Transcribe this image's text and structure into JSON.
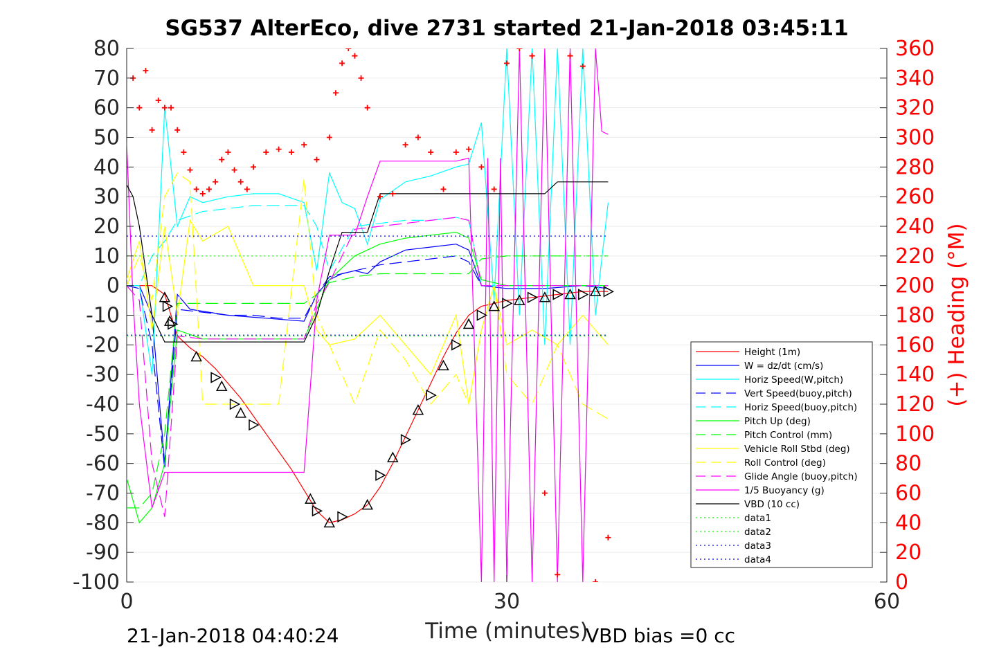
{
  "chart_data": {
    "type": "line",
    "title": "SG537 AlterEco, dive 2731 started 21-Jan-2018 03:45:11",
    "xlabel": "Time (minutes)",
    "ylabel_right": "(+) Heading (°M)",
    "xlim": [
      0,
      60
    ],
    "ylim": [
      -100,
      80
    ],
    "ylim_right": [
      0,
      360
    ],
    "x_ticks": [
      "0",
      "30",
      "60"
    ],
    "y_ticks": [
      "80",
      "70",
      "60",
      "50",
      "40",
      "30",
      "20",
      "10",
      "0",
      "-10",
      "-20",
      "-30",
      "-40",
      "-50",
      "-60",
      "-70",
      "-80",
      "-90",
      "-100"
    ],
    "y_ticks_right": [
      "360",
      "340",
      "320",
      "300",
      "280",
      "260",
      "240",
      "220",
      "200",
      "180",
      "160",
      "140",
      "120",
      "100",
      "80",
      "60",
      "40",
      "20",
      "0"
    ],
    "footer_left": "21-Jan-2018 04:40:24",
    "footer_right": "VBD bias =0 cc",
    "legend_position": "lower-right",
    "legend": [
      {
        "label": "Height (1m)",
        "color": "#ff0000",
        "style": "solid"
      },
      {
        "label": "W = dz/dt (cm/s)",
        "color": "#0000ff",
        "style": "solid"
      },
      {
        "label": "Horiz Speed(W,pitch)",
        "color": "#00ffff",
        "style": "solid"
      },
      {
        "label": "Vert Speed(buoy,pitch)",
        "color": "#0000ff",
        "style": "dashed"
      },
      {
        "label": "Horiz Speed(buoy,pitch)",
        "color": "#00ffff",
        "style": "dashed"
      },
      {
        "label": "Pitch Up (deg)",
        "color": "#00ff00",
        "style": "solid"
      },
      {
        "label": "Pitch Control (mm)",
        "color": "#00ff00",
        "style": "dashed"
      },
      {
        "label": "Vehicle Roll Stbd (deg)",
        "color": "#ffff00",
        "style": "solid"
      },
      {
        "label": "Roll Control (deg)",
        "color": "#ffff00",
        "style": "dashed"
      },
      {
        "label": "Glide Angle (buoy,pitch)",
        "color": "#ff00ff",
        "style": "dashed"
      },
      {
        "label": "1/5 Buoyancy (g)",
        "color": "#ff00ff",
        "style": "solid"
      },
      {
        "label": "VBD (10 cc)",
        "color": "#000000",
        "style": "solid"
      },
      {
        "label": "data1",
        "color": "#00ff00",
        "style": "dotted"
      },
      {
        "label": "data2",
        "color": "#00ff00",
        "style": "dotted"
      },
      {
        "label": "data3",
        "color": "#0000ff",
        "style": "dotted"
      },
      {
        "label": "data4",
        "color": "#0000ff",
        "style": "dotted"
      }
    ],
    "series": [
      {
        "name": "Height (1m)",
        "x": [
          0,
          1,
          2,
          3,
          4,
          5,
          6,
          7,
          8,
          9,
          10,
          11,
          12,
          13,
          14,
          15,
          16,
          17,
          18,
          19,
          20,
          21,
          22,
          23,
          24,
          25,
          26,
          27,
          28,
          29,
          30,
          32,
          34,
          36,
          38
        ],
        "values": [
          0,
          0,
          0,
          -3,
          -17,
          -21,
          -24,
          -28,
          -33,
          -38,
          -44,
          -50,
          -56,
          -62,
          -69,
          -76,
          -80,
          -79,
          -77,
          -74,
          -68,
          -60,
          -51,
          -42,
          -33,
          -24,
          -16,
          -10,
          -7,
          -6,
          -5,
          -4,
          -3,
          -2,
          -2
        ]
      },
      {
        "name": "W = dz/dt (cm/s)",
        "x": [
          0,
          1,
          2,
          3,
          4,
          5,
          8,
          11,
          14,
          15,
          16,
          17,
          18,
          19,
          20,
          22,
          24,
          26,
          27,
          28,
          30,
          33,
          36,
          38
        ],
        "values": [
          0,
          0,
          -10,
          -60,
          -3,
          -8,
          -10,
          -11,
          -12,
          -3,
          2,
          4,
          5,
          4,
          8,
          12,
          13,
          14,
          12,
          0,
          -1,
          -1,
          0,
          -1
        ]
      },
      {
        "name": "Horiz Speed(W,pitch)",
        "x": [
          0,
          1,
          2,
          3,
          4,
          5,
          6,
          8,
          10,
          12,
          14,
          15,
          16,
          17,
          18,
          19,
          20,
          22,
          24,
          26,
          27,
          28,
          29,
          30,
          31,
          32,
          33,
          34,
          35,
          36,
          37,
          38
        ],
        "values": [
          0,
          0,
          -30,
          60,
          20,
          30,
          28,
          30,
          31,
          31,
          28,
          5,
          38,
          28,
          26,
          14,
          29,
          35,
          37,
          40,
          41,
          55,
          -5,
          80,
          -10,
          80,
          -20,
          80,
          -20,
          80,
          -10,
          28
        ]
      },
      {
        "name": "Vert Speed(buoy,pitch)",
        "x": [
          0,
          1,
          2,
          3,
          4,
          6,
          8,
          10,
          12,
          14,
          15,
          16,
          18,
          20,
          22,
          24,
          26,
          27,
          28,
          30,
          32,
          34,
          36,
          38
        ],
        "values": [
          0,
          -1,
          -20,
          -62,
          -8,
          -9,
          -10,
          -10,
          -11,
          -11,
          -3,
          3,
          5,
          7,
          8,
          9,
          10,
          8,
          0,
          0,
          0,
          0,
          0,
          0
        ]
      },
      {
        "name": "Horiz Speed(buoy,pitch)",
        "x": [
          0,
          1,
          2,
          3,
          4,
          6,
          8,
          10,
          12,
          14,
          15,
          16,
          18,
          20,
          22,
          24,
          26,
          27,
          28,
          30,
          32,
          34,
          36,
          38
        ],
        "values": [
          0,
          0,
          10,
          15,
          22,
          25,
          26,
          27,
          27,
          27,
          20,
          5,
          20,
          21,
          22,
          22,
          23,
          22,
          0,
          0,
          0,
          0,
          0,
          0
        ]
      },
      {
        "name": "Pitch Up (deg)",
        "x": [
          0,
          1,
          2,
          3,
          4,
          6,
          8,
          10,
          12,
          14,
          15,
          16,
          18,
          20,
          22,
          24,
          26,
          27,
          28,
          30,
          32,
          34,
          36,
          38
        ],
        "values": [
          -65,
          -80,
          -75,
          -60,
          -15,
          -18,
          -18,
          -18,
          -18,
          -18,
          -8,
          2,
          10,
          14,
          16,
          17,
          18,
          16,
          2,
          0,
          0,
          0,
          0,
          0
        ]
      },
      {
        "name": "Pitch Control (mm)",
        "x": [
          0,
          1,
          2,
          3,
          4,
          6,
          8,
          10,
          12,
          14,
          15,
          16,
          18,
          20,
          22,
          24,
          26,
          27,
          28,
          30,
          32,
          34,
          36,
          38
        ],
        "values": [
          -75,
          -75,
          -70,
          -50,
          -6,
          -6,
          -6,
          -6,
          -6,
          -6,
          -3,
          1,
          3,
          4,
          4,
          4,
          4,
          4,
          9,
          10,
          10,
          10,
          10,
          10
        ]
      },
      {
        "name": "Vehicle Roll Stbd (deg)",
        "x": [
          0,
          1,
          2,
          3,
          4,
          5,
          6,
          8,
          10,
          12,
          14,
          15,
          16,
          18,
          20,
          22,
          24,
          26,
          27,
          28,
          29,
          30,
          32,
          34,
          36,
          38
        ],
        "values": [
          2,
          15,
          -15,
          20,
          -10,
          22,
          15,
          20,
          0,
          0,
          0,
          -15,
          -20,
          -18,
          -10,
          -20,
          -30,
          -10,
          -40,
          -15,
          0,
          -20,
          -15,
          -20,
          -10,
          -20
        ]
      },
      {
        "name": "Roll Control (deg)",
        "x": [
          0,
          1,
          2,
          3,
          4,
          5,
          6,
          8,
          10,
          12,
          14,
          15,
          16,
          18,
          20,
          22,
          24,
          26,
          27,
          28,
          29,
          30,
          32,
          34,
          36,
          38
        ],
        "values": [
          0,
          10,
          -5,
          30,
          38,
          35,
          -40,
          -40,
          -40,
          -40,
          36,
          -10,
          -20,
          -40,
          -15,
          -25,
          -40,
          -30,
          -40,
          -15,
          0,
          -30,
          -40,
          -20,
          -40,
          -45
        ]
      },
      {
        "name": "Glide Angle (buoy,pitch)",
        "x": [
          0,
          1,
          2,
          3,
          4,
          6,
          8,
          10,
          12,
          14,
          15,
          16,
          18,
          20,
          22,
          24,
          26,
          27,
          28,
          30,
          32,
          34,
          36,
          38
        ],
        "values": [
          0,
          -5,
          -60,
          -78,
          -17,
          -18,
          -18,
          -18,
          -18,
          -18,
          -6,
          1,
          19,
          20,
          21,
          22,
          23,
          22,
          0,
          0,
          0,
          0,
          0,
          0
        ]
      },
      {
        "name": "1/5 Buoyancy (g)",
        "x": [
          0,
          0.5,
          1,
          2,
          3,
          4,
          8,
          12,
          14,
          15,
          16,
          17,
          18,
          19,
          20,
          24,
          26,
          27,
          28,
          28.5,
          29,
          29.5,
          30,
          31,
          32,
          33,
          34,
          35,
          36,
          37,
          37.5,
          38
        ],
        "values": [
          48,
          -5,
          -40,
          -75,
          -63,
          -63,
          -63,
          -63,
          -63,
          -5,
          17,
          17,
          17,
          30,
          42,
          42,
          42,
          43,
          -100,
          43,
          -100,
          43,
          -100,
          80,
          -100,
          80,
          -100,
          80,
          -100,
          80,
          52,
          51
        ]
      },
      {
        "name": "VBD (10 cc)",
        "x": [
          0,
          0.5,
          1,
          2,
          3,
          5,
          8,
          10,
          12,
          14,
          15,
          16,
          17,
          18,
          19,
          20,
          21,
          23,
          25,
          27,
          30,
          33,
          34,
          36,
          38
        ],
        "values": [
          34,
          30,
          20,
          -10,
          -19,
          -19,
          -19,
          -19,
          -19,
          -19,
          -10,
          5,
          18,
          18,
          18,
          31,
          31,
          31,
          31,
          31,
          31,
          31,
          35,
          35,
          35
        ]
      },
      {
        "name": "data1",
        "x": [
          0,
          38
        ],
        "values": [
          10,
          10
        ]
      },
      {
        "name": "data2",
        "x": [
          0,
          38
        ],
        "values": [
          -17,
          -17
        ]
      },
      {
        "name": "data3",
        "x": [
          0,
          38
        ],
        "values": [
          16.7,
          16.7
        ]
      },
      {
        "name": "data4",
        "x": [
          0,
          38
        ],
        "values": [
          -16.7,
          -16.7
        ]
      }
    ],
    "depth_markers": {
      "x": [
        3,
        3.2,
        3.4,
        3.6,
        5.5,
        7,
        7.5,
        8.5,
        9,
        10,
        14.5,
        15,
        16,
        17,
        19,
        20,
        21,
        22,
        23,
        24,
        25,
        26,
        27,
        28,
        29,
        30,
        31,
        32,
        33,
        34,
        35,
        36,
        37,
        38
      ],
      "values": [
        -4,
        -7,
        -12,
        -13,
        -24,
        -31,
        -34,
        -40,
        -43,
        -47,
        -72,
        -76,
        -80,
        -78,
        -74,
        -64,
        -58,
        -52,
        -42,
        -37,
        -27,
        -20,
        -13,
        -10,
        -7,
        -6,
        -5,
        -4,
        -4,
        -3,
        -3,
        -3,
        -2,
        -2
      ]
    },
    "heading": {
      "x": [
        0.5,
        1,
        1.5,
        2,
        2.5,
        3,
        3.5,
        4,
        4.5,
        5,
        5.5,
        6,
        6.5,
        7,
        7.5,
        8,
        8.5,
        9,
        9.5,
        10,
        11,
        12,
        13,
        14,
        15,
        16,
        16.5,
        17,
        17.5,
        18,
        18.5,
        19,
        20,
        21,
        22,
        23,
        24,
        25,
        26,
        27,
        28,
        29,
        30,
        31,
        32,
        33,
        34,
        35,
        36,
        37,
        38
      ],
      "values": [
        340,
        320,
        345,
        305,
        325,
        320,
        320,
        305,
        290,
        278,
        265,
        262,
        265,
        270,
        285,
        290,
        278,
        270,
        265,
        280,
        290,
        292,
        290,
        295,
        285,
        300,
        330,
        350,
        360,
        355,
        340,
        320,
        260,
        262,
        295,
        300,
        290,
        265,
        290,
        292,
        280,
        265,
        350,
        360,
        355,
        60,
        5,
        355,
        348,
        0,
        30
      ]
    }
  }
}
